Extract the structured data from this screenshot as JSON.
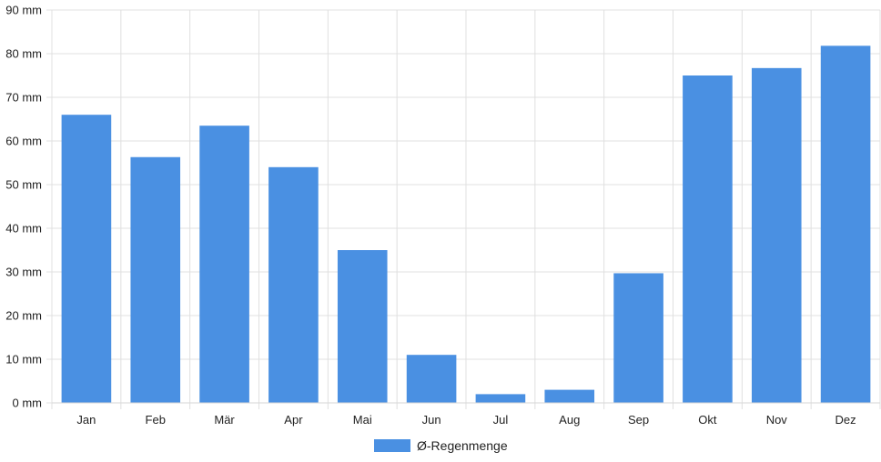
{
  "chart_data": {
    "type": "bar",
    "categories": [
      "Jan",
      "Feb",
      "Mär",
      "Apr",
      "Mai",
      "Jun",
      "Jul",
      "Aug",
      "Sep",
      "Okt",
      "Nov",
      "Dez"
    ],
    "series": [
      {
        "name": "Ø-Regenmenge",
        "color": "#4a90e2",
        "values": [
          66,
          56.3,
          63.5,
          54,
          35,
          11,
          2,
          3,
          29.7,
          75,
          76.7,
          81.8
        ]
      }
    ],
    "ylim": [
      0,
      90
    ],
    "yticks": [
      0,
      10,
      20,
      30,
      40,
      50,
      60,
      70,
      80,
      90
    ],
    "ytick_unit": "mm",
    "grid": true,
    "legend_position": "bottom"
  }
}
